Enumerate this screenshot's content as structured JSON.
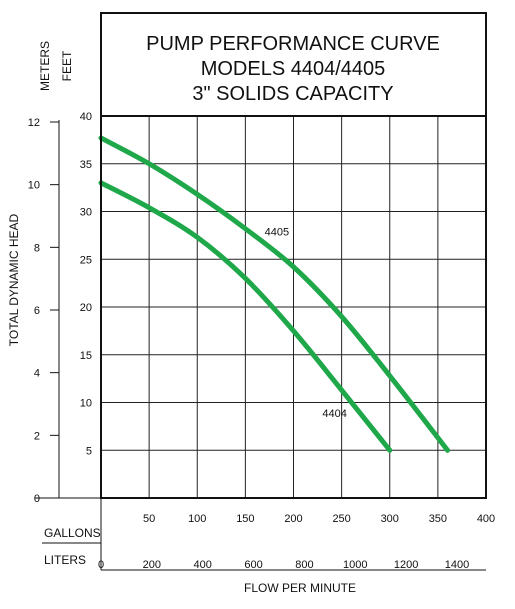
{
  "chart_data": {
    "type": "line",
    "title_lines": [
      "PUMP PERFORMANCE CURVE",
      "MODELS 4404/4405",
      "3\" SOLIDS CAPACITY"
    ],
    "xlabel": "FLOW PER MINUTE",
    "ylabel": "TOTAL DYNAMIC HEAD",
    "x_primary_unit": "GALLONS",
    "x_secondary_unit": "LITERS",
    "y_primary_unit": "FEET",
    "y_secondary_unit": "METERS",
    "xlim": [
      0,
      400
    ],
    "ylim": [
      0,
      40
    ],
    "x_ticks": [
      "50",
      "100",
      "150",
      "200",
      "250",
      "300",
      "350",
      "400"
    ],
    "x_tick_values": [
      50,
      100,
      150,
      200,
      250,
      300,
      350,
      400
    ],
    "liters_ticks": [
      "0",
      "200",
      "400",
      "600",
      "800",
      "1000",
      "1200",
      "1400"
    ],
    "liters_tick_values": [
      0,
      200,
      400,
      600,
      800,
      1000,
      1200,
      1400
    ],
    "liters_per_gallon": 3.785,
    "y_ticks": [
      "5",
      "10",
      "15",
      "20",
      "25",
      "30",
      "35",
      "40"
    ],
    "y_tick_values": [
      5,
      10,
      15,
      20,
      25,
      30,
      35,
      40
    ],
    "meters_ticks": [
      "0",
      "2",
      "4",
      "6",
      "8",
      "10",
      "12"
    ],
    "meters_tick_values": [
      0,
      2,
      4,
      6,
      8,
      10,
      12
    ],
    "feet_per_meter": 3.281,
    "grid": true,
    "line_color": "#1fa84a",
    "series": [
      {
        "name": "4405",
        "x": [
          0,
          50,
          100,
          150,
          200,
          250,
          300,
          360
        ],
        "y": [
          37.7,
          35.0,
          31.8,
          28.2,
          24.2,
          19.0,
          12.8,
          5.0
        ],
        "label_at": [
          170,
          27.5
        ]
      },
      {
        "name": "4404",
        "x": [
          0,
          50,
          100,
          150,
          200,
          250,
          300
        ],
        "y": [
          33.0,
          30.4,
          27.3,
          23.0,
          17.5,
          11.3,
          5.0
        ],
        "label_at": [
          230,
          8.5
        ]
      }
    ]
  }
}
